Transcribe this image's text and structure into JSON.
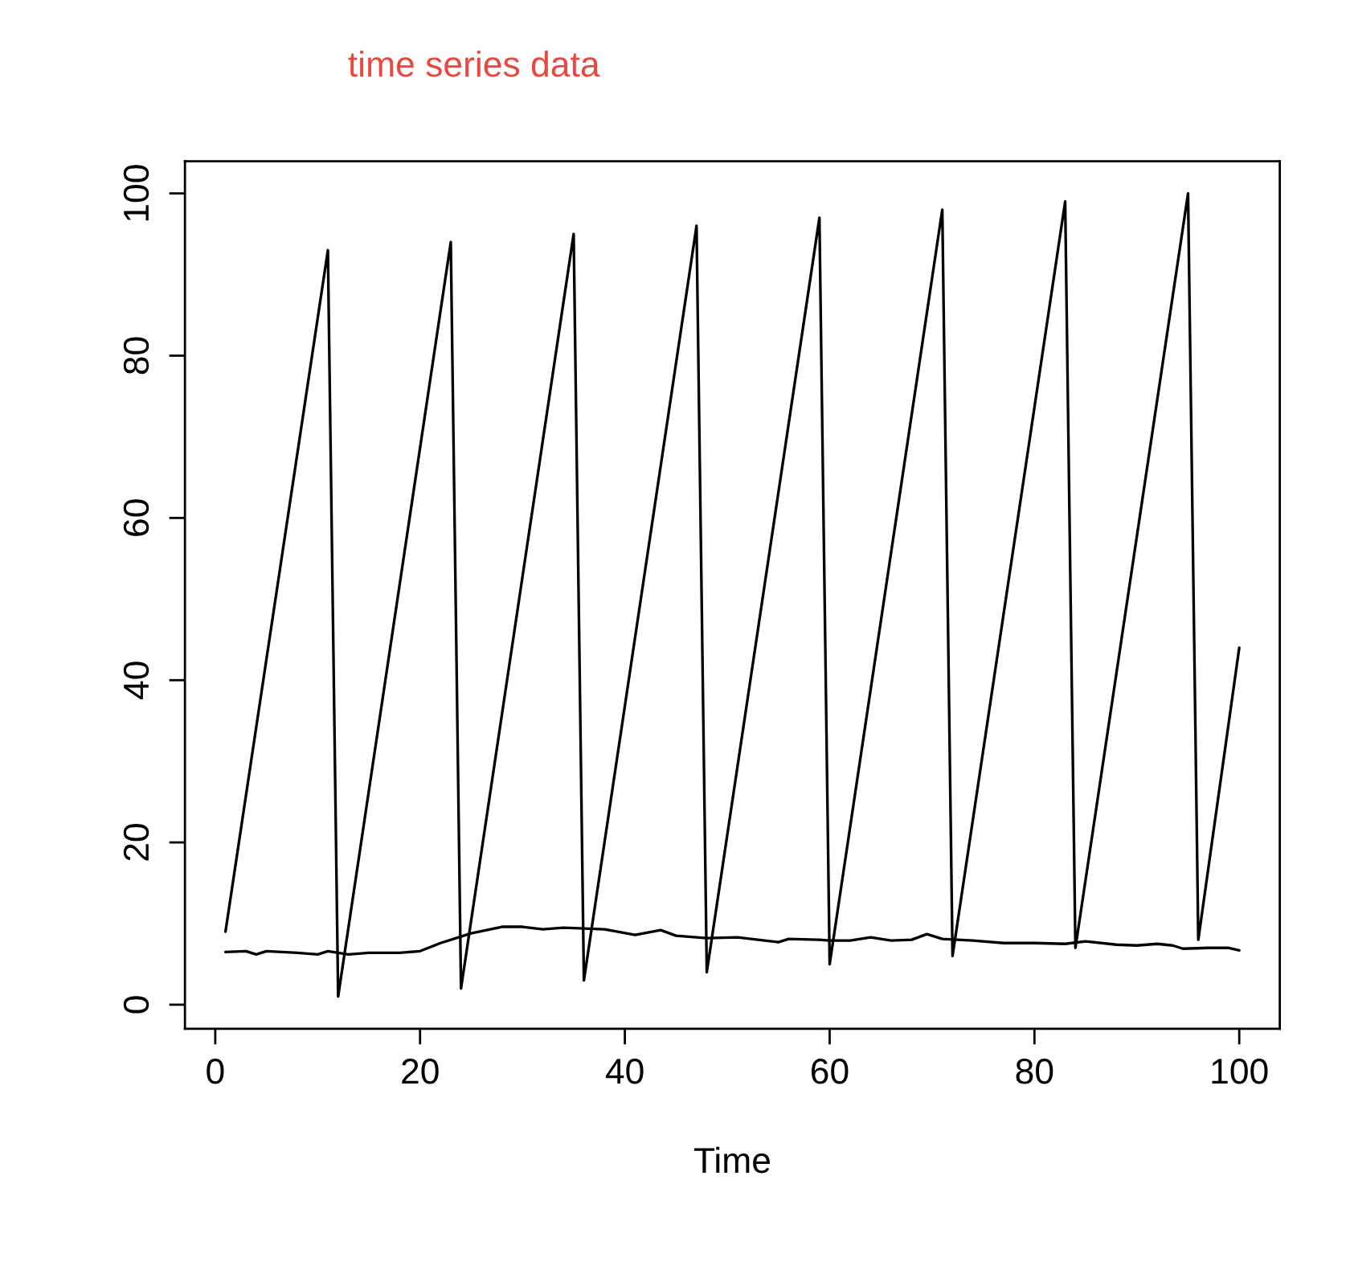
{
  "chart_data": {
    "type": "line",
    "title": "time series data",
    "xlabel": "Time",
    "xlim": [
      -2.96,
      103.96
    ],
    "ylim": [
      -2.96,
      103.96
    ],
    "xticks": [
      0,
      20,
      40,
      60,
      80,
      100
    ],
    "yticks": [
      0,
      20,
      40,
      60,
      80,
      100
    ],
    "grid": false,
    "marker": "none",
    "line_style": "solid",
    "series": [
      {
        "color": "#000000",
        "x": [
          1,
          11,
          12,
          23,
          24,
          35,
          36,
          47,
          48,
          59,
          60,
          71,
          72,
          83,
          84,
          95,
          96,
          100
        ],
        "values": [
          9,
          93,
          1,
          94,
          2,
          95,
          3,
          96,
          4,
          97,
          5,
          98,
          6,
          99,
          7,
          100,
          8,
          44
        ]
      },
      {
        "color": "#000000",
        "x": [
          1,
          3,
          4,
          5,
          8,
          10,
          11,
          13,
          15,
          18,
          20,
          21,
          22,
          24,
          25,
          28,
          30,
          32,
          34,
          38,
          41,
          43.5,
          45,
          48,
          51,
          53,
          55,
          56,
          59,
          60,
          62,
          64,
          66,
          68,
          69.5,
          71,
          74,
          77,
          80,
          83,
          85,
          88,
          90,
          92,
          93.5,
          94.5,
          97,
          99,
          100
        ],
        "values": [
          6.5,
          6.6,
          6.2,
          6.6,
          6.4,
          6.2,
          6.6,
          6.2,
          6.4,
          6.4,
          6.6,
          7.1,
          7.6,
          8.4,
          8.8,
          9.6,
          9.6,
          9.3,
          9.5,
          9.3,
          8.6,
          9.2,
          8.5,
          8.2,
          8.3,
          8.0,
          7.7,
          8.1,
          8.0,
          7.9,
          7.9,
          8.3,
          7.9,
          8.0,
          8.7,
          8.1,
          7.9,
          7.6,
          7.6,
          7.5,
          7.8,
          7.4,
          7.3,
          7.5,
          7.3,
          6.9,
          7.0,
          7.0,
          6.7
        ]
      }
    ]
  }
}
